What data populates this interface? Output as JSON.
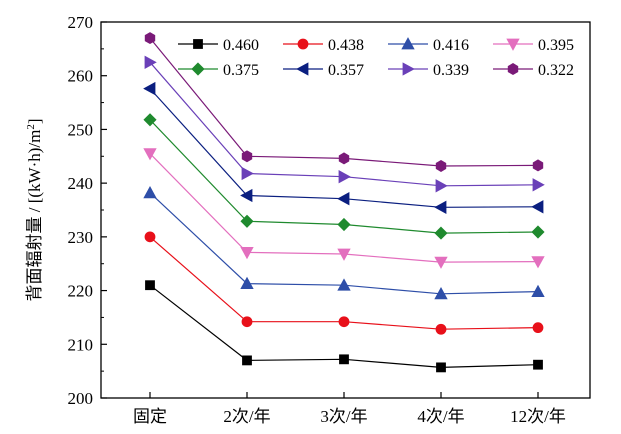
{
  "chart_data": {
    "type": "line",
    "categories": [
      "固定",
      "2次/年",
      "3次/年",
      "4次/年",
      "12次/年"
    ],
    "ylabel": "背面辐射量 / [(kW·h)/m",
    "ylabel_superscript": "2",
    "ylabel_close": "]",
    "ylim": [
      200,
      270
    ],
    "yticks": [
      200,
      210,
      220,
      230,
      240,
      250,
      260,
      270
    ],
    "grid": false,
    "legend_position": "top-right",
    "series": [
      {
        "name": "0.460",
        "color": "#000000",
        "marker": "square",
        "values": [
          221.0,
          207.0,
          207.2,
          205.7,
          206.2
        ]
      },
      {
        "name": "0.438",
        "color": "#e8101a",
        "marker": "circle",
        "values": [
          230.0,
          214.2,
          214.2,
          212.8,
          213.1
        ]
      },
      {
        "name": "0.416",
        "color": "#2e4ea8",
        "marker": "triangle-up",
        "values": [
          238.2,
          221.3,
          221.0,
          219.4,
          219.8
        ]
      },
      {
        "name": "0.395",
        "color": "#e36fbe",
        "marker": "triangle-down",
        "values": [
          245.5,
          227.1,
          226.8,
          225.3,
          225.4
        ]
      },
      {
        "name": "0.375",
        "color": "#1f8a2e",
        "marker": "diamond",
        "values": [
          251.8,
          232.9,
          232.3,
          230.7,
          230.9
        ]
      },
      {
        "name": "0.357",
        "color": "#0b1f80",
        "marker": "triangle-left",
        "values": [
          257.6,
          237.7,
          237.1,
          235.5,
          235.6
        ]
      },
      {
        "name": "0.339",
        "color": "#6a40b8",
        "marker": "triangle-right",
        "values": [
          262.5,
          241.8,
          241.2,
          239.5,
          239.7
        ]
      },
      {
        "name": "0.322",
        "color": "#7a1a78",
        "marker": "hexagon",
        "values": [
          267.0,
          245.0,
          244.6,
          243.2,
          243.3
        ]
      }
    ]
  }
}
